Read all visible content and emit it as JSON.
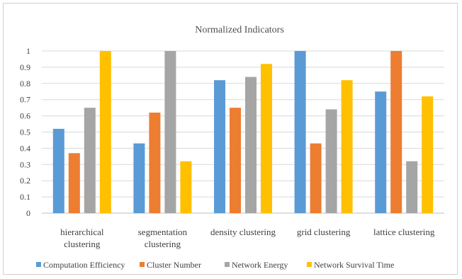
{
  "chart_data": {
    "type": "bar",
    "title": "Normalized Indicators",
    "categories": [
      [
        "hierarchical",
        "clustering"
      ],
      [
        "segmentation",
        "clustering"
      ],
      [
        "density clustering"
      ],
      [
        "grid clustering"
      ],
      [
        "lattice clustering"
      ]
    ],
    "series": [
      {
        "name": "Computation Efficiency",
        "color": "#5b9bd5",
        "values": [
          0.52,
          0.43,
          0.82,
          1.0,
          0.75
        ]
      },
      {
        "name": "Cluster Number",
        "color": "#ed7d31",
        "values": [
          0.37,
          0.62,
          0.65,
          0.43,
          1.0
        ]
      },
      {
        "name": "Network Energy",
        "color": "#a5a5a5",
        "values": [
          0.65,
          1.0,
          0.84,
          0.64,
          0.32
        ]
      },
      {
        "name": "Network Survival Time",
        "color": "#ffc000",
        "values": [
          1.0,
          0.32,
          0.92,
          0.82,
          0.72
        ]
      }
    ],
    "yticks": [
      "0",
      "0.1",
      "0.2",
      "0.3",
      "0.4",
      "0.5",
      "0.6",
      "0.7",
      "0.8",
      "0.9",
      "1"
    ],
    "ylim": [
      0,
      1
    ],
    "grid": true,
    "legend_position": "bottom"
  }
}
